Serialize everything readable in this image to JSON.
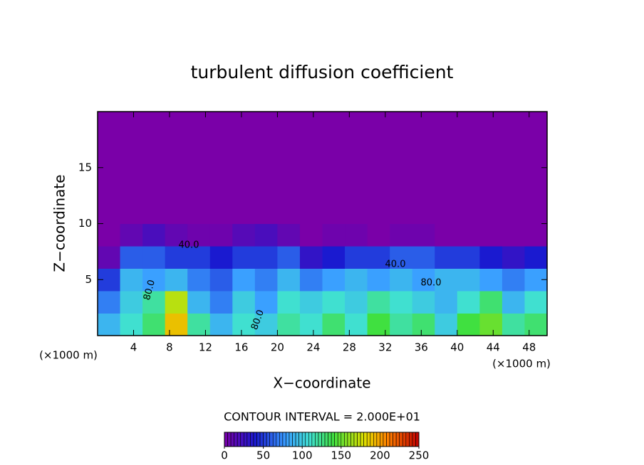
{
  "chart_data": {
    "type": "heatmap",
    "title": "turbulent diffusion coefficient",
    "xlabel": "X−coordinate",
    "ylabel": "Z−coordinate",
    "xlabel_unit": "(×1000 m)",
    "ylabel_unit": "(×1000 m)",
    "xlim": [
      0,
      50
    ],
    "ylim": [
      0,
      20
    ],
    "xticks": [
      4,
      8,
      12,
      16,
      20,
      24,
      28,
      32,
      36,
      40,
      44,
      48
    ],
    "yticks": [
      5,
      10,
      15
    ],
    "values": [
      [
        90,
        110,
        130,
        190,
        120,
        90,
        110,
        100,
        120,
        110,
        130,
        110,
        140,
        120,
        130,
        100,
        140,
        150,
        120,
        130
      ],
      [
        70,
        100,
        120,
        170,
        90,
        70,
        100,
        80,
        110,
        100,
        110,
        100,
        120,
        110,
        100,
        90,
        110,
        130,
        90,
        110
      ],
      [
        50,
        90,
        80,
        90,
        70,
        60,
        80,
        70,
        90,
        70,
        80,
        90,
        80,
        90,
        80,
        90,
        90,
        80,
        70,
        80
      ],
      [
        10,
        60,
        60,
        50,
        50,
        40,
        50,
        50,
        60,
        30,
        40,
        50,
        50,
        60,
        60,
        50,
        50,
        40,
        30,
        40
      ],
      [
        0,
        10,
        20,
        10,
        5,
        5,
        15,
        20,
        10,
        0,
        5,
        5,
        0,
        5,
        5,
        0,
        0,
        0,
        0,
        0
      ],
      [
        0,
        0,
        0,
        0,
        0,
        0,
        0,
        0,
        0,
        0,
        0,
        0,
        0,
        0,
        0,
        0,
        0,
        0,
        0,
        0
      ],
      [
        0,
        0,
        0,
        0,
        0,
        0,
        0,
        0,
        0,
        0,
        0,
        0,
        0,
        0,
        0,
        0,
        0,
        0,
        0,
        0
      ],
      [
        0,
        0,
        0,
        0,
        0,
        0,
        0,
        0,
        0,
        0,
        0,
        0,
        0,
        0,
        0,
        0,
        0,
        0,
        0,
        0
      ],
      [
        0,
        0,
        0,
        0,
        0,
        0,
        0,
        0,
        0,
        0,
        0,
        0,
        0,
        0,
        0,
        0,
        0,
        0,
        0,
        0
      ],
      [
        0,
        0,
        0,
        0,
        0,
        0,
        0,
        0,
        0,
        0,
        0,
        0,
        0,
        0,
        0,
        0,
        0,
        0,
        0,
        0
      ]
    ],
    "contour_labels": [
      {
        "value": 40,
        "label": "40.0"
      },
      {
        "value": 80,
        "label": "80.0"
      },
      {
        "value": 40,
        "label": "40.0"
      },
      {
        "value": 80,
        "label": "80.0"
      },
      {
        "value": 80,
        "label": "80.0"
      }
    ],
    "contour_interval": "CONTOUR INTERVAL = 2.000E+01",
    "colorbar": {
      "lim": [
        0,
        250
      ],
      "ticks": [
        0,
        50,
        100,
        150,
        200,
        250
      ]
    }
  }
}
